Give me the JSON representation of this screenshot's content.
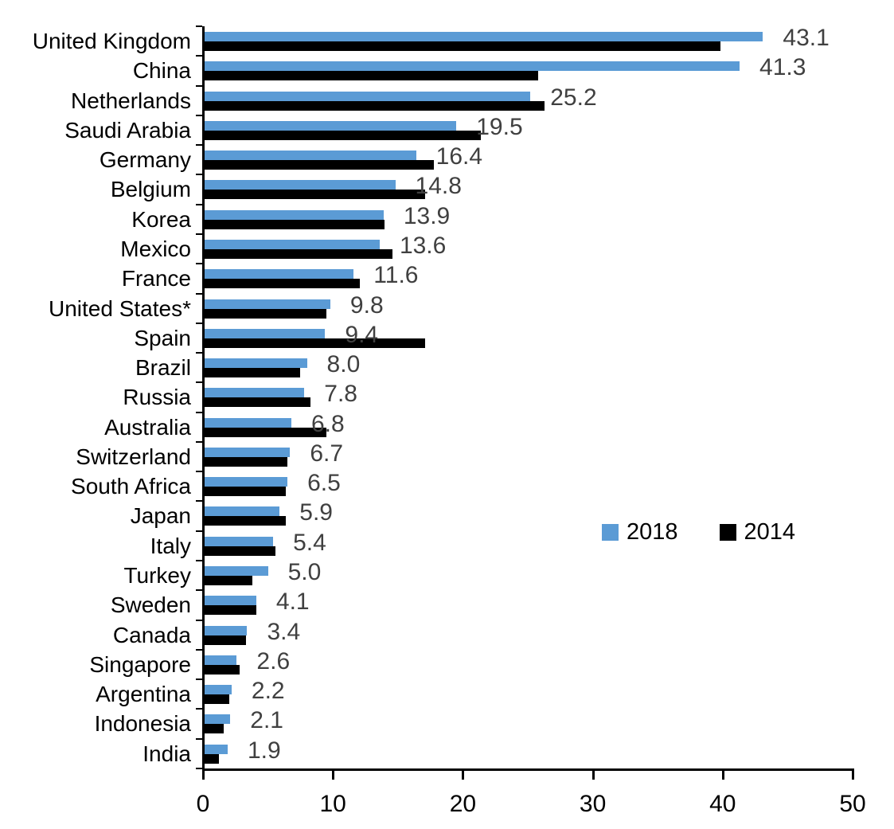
{
  "chart_data": {
    "type": "bar",
    "orientation": "horizontal",
    "title": "",
    "xlabel": "",
    "ylabel": "",
    "categories": [
      "United Kingdom",
      "China",
      "Netherlands",
      "Saudi Arabia",
      "Germany",
      "Belgium",
      "Korea",
      "Mexico",
      "France",
      "United States*",
      "Spain",
      "Brazil",
      "Russia",
      "Australia",
      "Switzerland",
      "South Africa",
      "Japan",
      "Italy",
      "Turkey",
      "Sweden",
      "Canada",
      "Singapore",
      "Argentina",
      "Indonesia",
      "India"
    ],
    "series": [
      {
        "name": "2018",
        "color": "#5B9BD5",
        "values": [
          43.1,
          41.3,
          25.2,
          19.5,
          16.4,
          14.8,
          13.9,
          13.6,
          11.6,
          9.8,
          9.4,
          8.0,
          7.8,
          6.8,
          6.7,
          6.5,
          5.9,
          5.4,
          5.0,
          4.1,
          3.4,
          2.6,
          2.2,
          2.1,
          1.9
        ],
        "data_labels": [
          "43.1",
          "41.3",
          "25.2",
          "19.5",
          "16.4",
          "14.8",
          "13.9",
          "13.6",
          "11.6",
          "9.8",
          "9.4",
          "8.0",
          "7.8",
          "6.8",
          "6.7",
          "6.5",
          "5.9",
          "5.4",
          "5.0",
          "4.1",
          "3.4",
          "2.6",
          "2.2",
          "2.1",
          "1.9"
        ]
      },
      {
        "name": "2014",
        "color": "#000000",
        "values": [
          39.8,
          25.8,
          26.3,
          21.4,
          17.8,
          17.1,
          14.0,
          14.6,
          12.1,
          9.5,
          17.1,
          7.5,
          8.3,
          9.5,
          6.5,
          6.4,
          6.4,
          5.6,
          3.8,
          4.1,
          3.3,
          2.8,
          2.0,
          1.6,
          1.2
        ]
      }
    ],
    "xlim": [
      0,
      50
    ],
    "x_tick_labels": [
      "0",
      "10",
      "20",
      "30",
      "40",
      "50"
    ],
    "x_tick_values": [
      0,
      10,
      20,
      30,
      40,
      50
    ],
    "grid": false,
    "legend": {
      "entries": [
        "2018",
        "2014"
      ],
      "position": "center-right"
    },
    "value_label_color": "#404040"
  }
}
